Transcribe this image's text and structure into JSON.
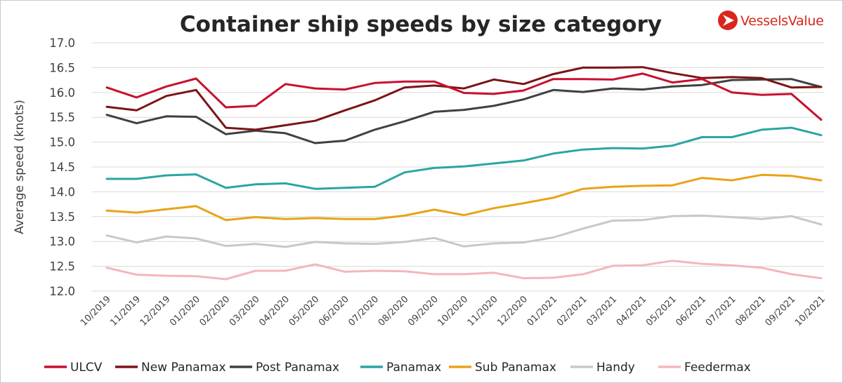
{
  "brand": {
    "name": "VesselsValue",
    "logo_icon": "vesselsvalue-logo-icon",
    "color": "#d9261c"
  },
  "chart_data": {
    "type": "line",
    "title": "Container ship speeds by size category",
    "xlabel": "",
    "ylabel": "Average speed (knots)",
    "ylim": [
      12.0,
      17.0
    ],
    "yticks": [
      "17.0",
      "16.5",
      "16.0",
      "15.5",
      "15.0",
      "14.5",
      "14.0",
      "13.5",
      "13.0",
      "12.5",
      "12.0"
    ],
    "ytick_values": [
      17.0,
      16.5,
      16.0,
      15.5,
      15.0,
      14.5,
      14.0,
      13.5,
      13.0,
      12.5,
      12.0
    ],
    "grid": true,
    "legend_position": "bottom",
    "categories": [
      "10/2019",
      "11/2019",
      "12/2019",
      "01/2020",
      "02/2020",
      "03/2020",
      "04/2020",
      "05/2020",
      "06/2020",
      "07/2020",
      "08/2020",
      "09/2020",
      "10/2020",
      "11/2020",
      "12/2020",
      "01/2021",
      "02/2021",
      "03/2021",
      "04/2021",
      "05/2021",
      "06/2021",
      "07/2021",
      "08/2021",
      "09/2021",
      "10/2021"
    ],
    "series": [
      {
        "name": "ULCV",
        "color": "#c8102e",
        "values": [
          16.1,
          15.9,
          16.12,
          16.28,
          15.7,
          15.73,
          16.17,
          16.08,
          16.06,
          16.19,
          16.22,
          16.22,
          15.99,
          15.97,
          16.04,
          16.27,
          16.27,
          16.26,
          16.38,
          16.2,
          16.27,
          16.0,
          15.95,
          15.97,
          15.45
        ]
      },
      {
        "name": "New Panamax",
        "color": "#7b1416",
        "values": [
          15.71,
          15.64,
          15.93,
          16.05,
          15.29,
          15.25,
          15.34,
          15.43,
          15.64,
          15.84,
          16.1,
          16.14,
          16.08,
          16.26,
          16.17,
          16.37,
          16.5,
          16.5,
          16.51,
          16.39,
          16.29,
          16.31,
          16.29,
          16.1,
          16.11
        ]
      },
      {
        "name": "Post Panamax",
        "color": "#404040",
        "values": [
          15.55,
          15.38,
          15.52,
          15.51,
          15.16,
          15.23,
          15.18,
          14.98,
          15.03,
          15.25,
          15.42,
          15.61,
          15.65,
          15.73,
          15.86,
          16.05,
          16.01,
          16.08,
          16.06,
          16.12,
          16.15,
          16.25,
          16.26,
          16.27,
          16.11
        ]
      },
      {
        "name": "Panamax",
        "color": "#2aa6a1",
        "values": [
          14.26,
          14.26,
          14.33,
          14.35,
          14.08,
          14.15,
          14.17,
          14.06,
          14.08,
          14.1,
          14.39,
          14.48,
          14.51,
          14.57,
          14.63,
          14.77,
          14.85,
          14.88,
          14.87,
          14.93,
          15.1,
          15.1,
          15.25,
          15.29,
          15.14
        ]
      },
      {
        "name": "Sub Panamax",
        "color": "#e8a317",
        "values": [
          13.62,
          13.58,
          13.65,
          13.71,
          13.43,
          13.49,
          13.45,
          13.47,
          13.45,
          13.45,
          13.52,
          13.64,
          13.53,
          13.67,
          13.77,
          13.88,
          14.06,
          14.1,
          14.12,
          14.13,
          14.28,
          14.23,
          14.34,
          14.32,
          14.23
        ]
      },
      {
        "name": "Handy",
        "color": "#c8c8c8",
        "values": [
          13.12,
          12.98,
          13.1,
          13.06,
          12.91,
          12.95,
          12.89,
          12.99,
          12.96,
          12.95,
          12.99,
          13.07,
          12.9,
          12.96,
          12.98,
          13.08,
          13.26,
          13.42,
          13.43,
          13.51,
          13.52,
          13.49,
          13.45,
          13.51,
          13.34
        ]
      },
      {
        "name": "Feedermax",
        "color": "#f4b6bd",
        "values": [
          12.47,
          12.33,
          12.31,
          12.3,
          12.24,
          12.41,
          12.41,
          12.54,
          12.39,
          12.41,
          12.4,
          12.34,
          12.34,
          12.37,
          12.26,
          12.27,
          12.34,
          12.51,
          12.52,
          12.61,
          12.55,
          12.52,
          12.47,
          12.34,
          12.26
        ]
      }
    ]
  }
}
